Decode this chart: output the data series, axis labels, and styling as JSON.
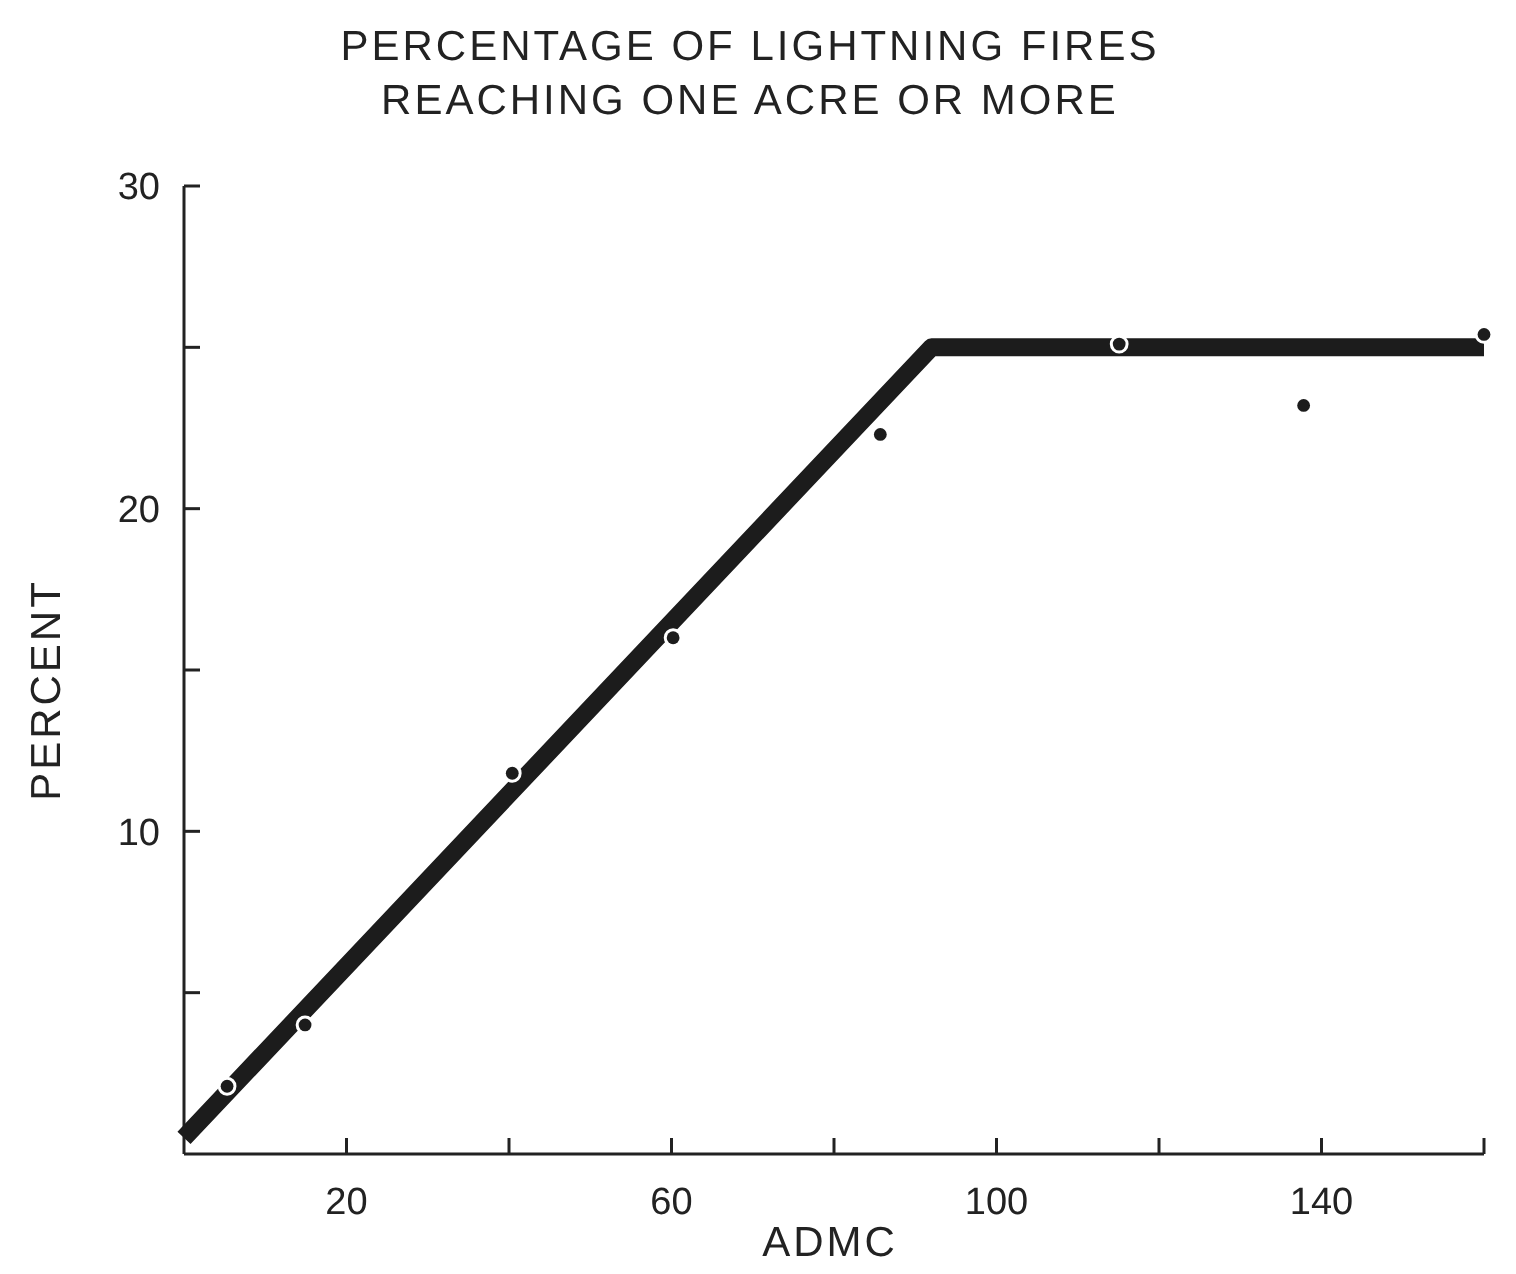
{
  "chart_data": {
    "type": "scatter",
    "title": "PERCENTAGE OF LIGHTNING FIRES REACHING ONE ACRE OR MORE",
    "xlabel": "ADMC",
    "ylabel": "PERCENT",
    "xlim": [
      0,
      160
    ],
    "xticks": [
      20,
      {
        "value": 40,
        "label": null
      },
      60,
      {
        "value": 80,
        "label": null
      },
      100,
      {
        "value": 120,
        "label": null
      },
      140,
      {
        "value": 160,
        "label": null
      }
    ],
    "ylim": [
      0,
      30
    ],
    "yticks": [
      {
        "value": 5,
        "label": null
      },
      10,
      {
        "value": 15,
        "label": null
      },
      20,
      {
        "value": 25,
        "label": null
      },
      30
    ],
    "grid": false,
    "marker": "circle",
    "series": [
      {
        "type": "line",
        "color": "#1c1c1c",
        "x": [
          0,
          92,
          160
        ],
        "values": [
          0.5,
          25,
          25
        ],
        "marker": "none"
      },
      {
        "type": "scatter",
        "color": "#1c1c1c",
        "x": [
          5.3,
          14.9,
          40.4,
          60.2,
          85.7,
          115.1,
          137.8,
          160
        ],
        "values": [
          2.1,
          4.0,
          11.8,
          16.0,
          22.3,
          25.1,
          23.2,
          25.4
        ]
      }
    ]
  }
}
